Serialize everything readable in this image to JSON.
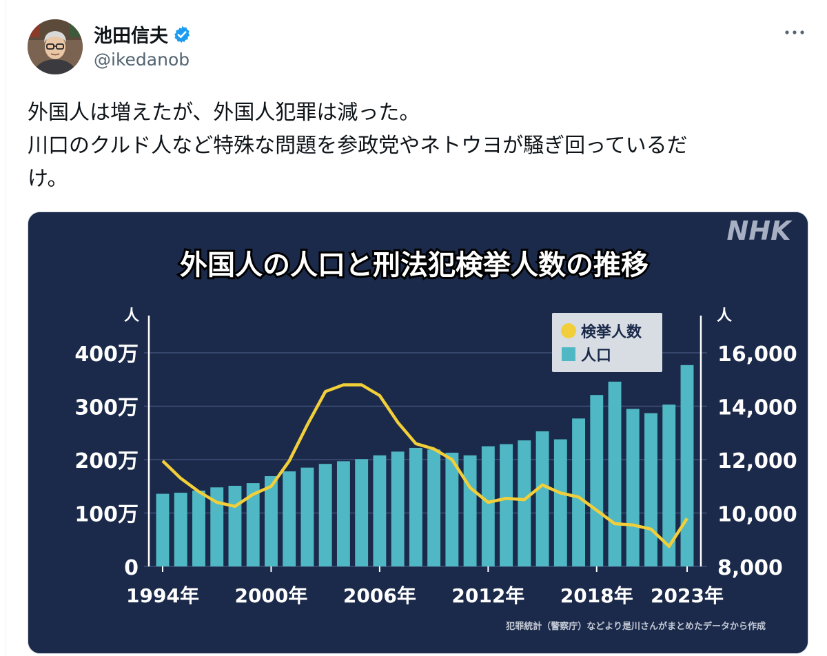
{
  "author": {
    "display_name": "池田信夫",
    "handle": "@ikedanob",
    "verified_icon": "verified-badge-icon",
    "avatar_icon": "avatar-photo"
  },
  "more_icon": "more-dots-icon",
  "tweet": {
    "lines": [
      "外国人は増えたが、外国人犯罪は減った。",
      "川口のクルド人など特殊な問題を参政党やネトウヨが騒ぎ回っているだ",
      "け。"
    ]
  },
  "media": {
    "logo": "NHK",
    "source_note": "犯罪統計（警察庁）などより是川さんがまとめたデータから作成"
  },
  "colors": {
    "chart_bg": "#1b2a4a",
    "bar": "#4fb8c4",
    "line": "#f2cf3a",
    "verified": "#1d9bf0"
  },
  "chart_data": {
    "type": "bar",
    "title": "外国人の人口と刑法犯検挙人数の推移",
    "x": [
      1994,
      1995,
      1996,
      1997,
      1998,
      1999,
      2000,
      2001,
      2002,
      2003,
      2004,
      2005,
      2006,
      2007,
      2008,
      2009,
      2010,
      2011,
      2012,
      2013,
      2014,
      2015,
      2016,
      2017,
      2018,
      2019,
      2020,
      2021,
      2022,
      2023
    ],
    "x_tick_labels": [
      "1994年",
      "2000年",
      "2006年",
      "2012年",
      "2018年",
      "2023年"
    ],
    "y_left": {
      "unit_label": "人",
      "range": [
        0,
        4000000
      ],
      "tick_labels": [
        "0",
        "100万",
        "200万",
        "300万",
        "400万"
      ]
    },
    "y_right": {
      "unit_label": "人",
      "range": [
        8000,
        16000
      ],
      "tick_labels": [
        "8,000",
        "10,000",
        "12,000",
        "14,000",
        "16,000"
      ]
    },
    "grid": true,
    "legend_position": "top-right",
    "series": [
      {
        "name": "人口",
        "kind": "bar",
        "axis": "left",
        "values": [
          1360000,
          1380000,
          1420000,
          1480000,
          1510000,
          1560000,
          1690000,
          1780000,
          1850000,
          1920000,
          1970000,
          2010000,
          2080000,
          2150000,
          2220000,
          2190000,
          2130000,
          2080000,
          2250000,
          2290000,
          2360000,
          2530000,
          2380000,
          2770000,
          3210000,
          3460000,
          2950000,
          2870000,
          3030000,
          3770000
        ]
      },
      {
        "name": "検挙人数",
        "kind": "line",
        "axis": "right",
        "values": [
          11950,
          11300,
          10800,
          10400,
          10250,
          10700,
          11000,
          11950,
          13300,
          14550,
          14800,
          14800,
          14400,
          13400,
          12600,
          12400,
          12000,
          10950,
          10400,
          10550,
          10500,
          11050,
          10750,
          10600,
          10100,
          9600,
          9550,
          9400,
          8750,
          9800
        ]
      }
    ]
  }
}
